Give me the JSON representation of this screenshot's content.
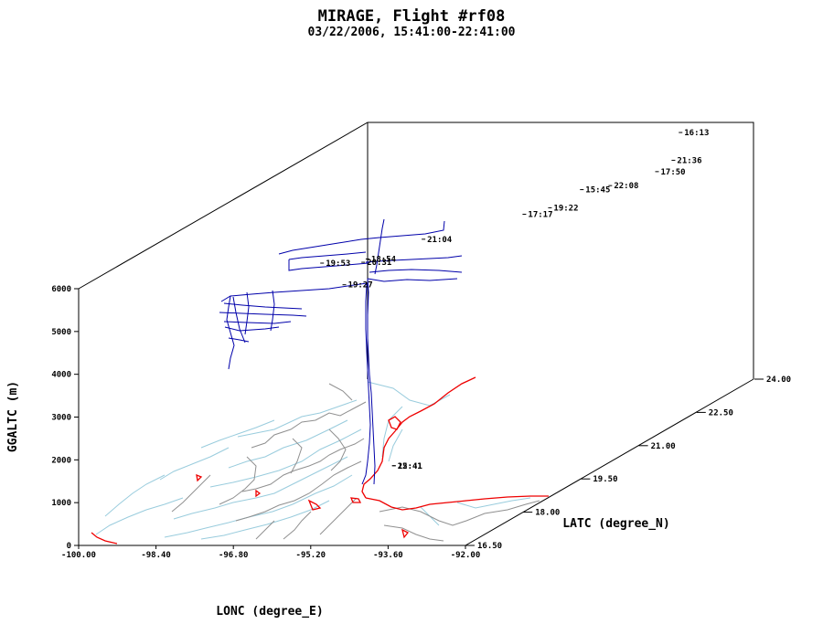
{
  "chart_data": {
    "type": "line3d",
    "title": "MIRAGE, Flight #rf08",
    "subtitle": "03/22/2006, 15:41:00-22:41:00",
    "xlabel": "LONC (degree_E)",
    "ylabel": "LATC (degree_N)",
    "zlabel": "GGALTC (m)",
    "xlim": [
      -100.0,
      -92.0
    ],
    "ylim": [
      16.5,
      24.0
    ],
    "zlim": [
      0,
      6000
    ],
    "x_ticks": [
      "-100.00",
      "-98.40",
      "-96.80",
      "-95.20",
      "-93.60",
      "-92.00"
    ],
    "y_ticks": [
      "16.50",
      "18.00",
      "19.50",
      "21.00",
      "22.50",
      "24.00"
    ],
    "z_ticks": [
      "0",
      "1000",
      "2000",
      "3000",
      "4000",
      "5000",
      "6000"
    ],
    "colors": {
      "track": "#0000aa",
      "coast": "#ee0000",
      "rivers": "#99ccdd",
      "borders": "#909090"
    },
    "time_labels": [
      {
        "text": "15:45",
        "lon": -93.3,
        "lat": 21.2,
        "alt": 5880
      },
      {
        "text": "16:13",
        "lon": -93.25,
        "lat": 23.7,
        "alt": 5920
      },
      {
        "text": "22:08",
        "lon": -93.35,
        "lat": 22.0,
        "alt": 5560
      },
      {
        "text": "19:22",
        "lon": -93.8,
        "lat": 21.0,
        "alt": 5560
      },
      {
        "text": "17:17",
        "lon": -94.25,
        "lat": 20.9,
        "alt": 5460
      },
      {
        "text": "21:36",
        "lon": -93.0,
        "lat": 23.2,
        "alt": 5530
      },
      {
        "text": "17:50",
        "lon": -93.1,
        "lat": 22.9,
        "alt": 5420
      },
      {
        "text": "21:04",
        "lon": -95.3,
        "lat": 19.6,
        "alt": 5550
      },
      {
        "text": "19:53",
        "lon": -96.8,
        "lat": 18.85,
        "alt": 5380
      },
      {
        "text": "18:54",
        "lon": -95.9,
        "lat": 18.9,
        "alt": 5450
      },
      {
        "text": "20:31",
        "lon": -95.95,
        "lat": 18.85,
        "alt": 5400
      },
      {
        "text": "19:27",
        "lon": -96.3,
        "lat": 18.8,
        "alt": 4900
      },
      {
        "text": "22:41",
        "lon": -94.0,
        "lat": 17.2,
        "alt": 1500
      },
      {
        "text": "15:41",
        "lon": -94.0,
        "lat": 17.2,
        "alt": 1500
      }
    ]
  }
}
